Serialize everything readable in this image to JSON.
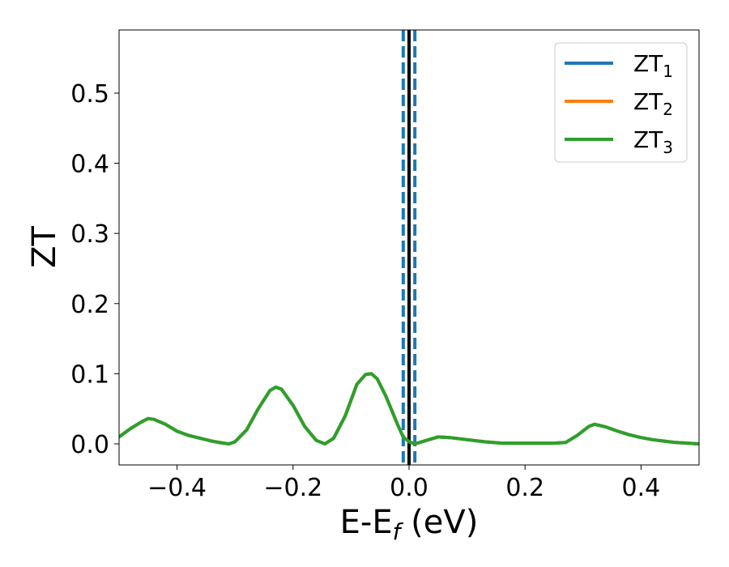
{
  "chart_data": {
    "type": "line",
    "xlabel": {
      "main": "E-E",
      "sub": "f",
      "suffix": " (eV)"
    },
    "ylabel": "ZT",
    "xlim": [
      -0.5,
      0.5
    ],
    "ylim": [
      -0.03,
      0.59
    ],
    "xticks": [
      -0.4,
      -0.2,
      0.0,
      0.2,
      0.4
    ],
    "xtick_labels": [
      "−0.4",
      "−0.2",
      "0.0",
      "0.2",
      "0.4"
    ],
    "yticks": [
      0.0,
      0.1,
      0.2,
      0.3,
      0.4,
      0.5
    ],
    "ytick_labels": [
      "0.0",
      "0.1",
      "0.2",
      "0.3",
      "0.4",
      "0.5"
    ],
    "legend_position": "top-right",
    "x": [
      -0.5,
      -0.48,
      -0.46,
      -0.45,
      -0.44,
      -0.42,
      -0.4,
      -0.38,
      -0.36,
      -0.34,
      -0.32,
      -0.31,
      -0.3,
      -0.28,
      -0.26,
      -0.24,
      -0.23,
      -0.22,
      -0.2,
      -0.18,
      -0.16,
      -0.145,
      -0.13,
      -0.11,
      -0.09,
      -0.075,
      -0.065,
      -0.055,
      -0.04,
      -0.02,
      -0.01,
      0.0,
      0.01,
      0.03,
      0.05,
      0.07,
      0.1,
      0.13,
      0.16,
      0.19,
      0.22,
      0.25,
      0.27,
      0.29,
      0.31,
      0.32,
      0.34,
      0.36,
      0.38,
      0.4,
      0.42,
      0.44,
      0.46,
      0.48,
      0.5
    ],
    "series": [
      {
        "name": "ZT",
        "sub": "1",
        "color": "#1f77b4",
        "values": [
          0.01,
          0.022,
          0.032,
          0.036,
          0.035,
          0.028,
          0.018,
          0.012,
          0.008,
          0.004,
          0.001,
          0.0,
          0.003,
          0.02,
          0.05,
          0.076,
          0.081,
          0.078,
          0.055,
          0.025,
          0.005,
          0.0,
          0.008,
          0.04,
          0.085,
          0.099,
          0.1,
          0.093,
          0.068,
          0.028,
          0.01,
          0.003,
          0.0,
          0.005,
          0.01,
          0.009,
          0.006,
          0.003,
          0.001,
          0.001,
          0.001,
          0.001,
          0.002,
          0.012,
          0.025,
          0.028,
          0.024,
          0.018,
          0.013,
          0.009,
          0.006,
          0.004,
          0.002,
          0.001,
          0.0
        ]
      },
      {
        "name": "ZT",
        "sub": "2",
        "color": "#ff7f0e",
        "values": [
          0.01,
          0.022,
          0.032,
          0.036,
          0.035,
          0.028,
          0.018,
          0.012,
          0.008,
          0.004,
          0.001,
          0.0,
          0.003,
          0.02,
          0.05,
          0.076,
          0.081,
          0.078,
          0.055,
          0.025,
          0.005,
          0.0,
          0.008,
          0.04,
          0.085,
          0.099,
          0.1,
          0.093,
          0.068,
          0.028,
          0.01,
          0.003,
          0.0,
          0.005,
          0.01,
          0.009,
          0.006,
          0.003,
          0.001,
          0.001,
          0.001,
          0.001,
          0.002,
          0.012,
          0.025,
          0.028,
          0.024,
          0.018,
          0.013,
          0.009,
          0.006,
          0.004,
          0.002,
          0.001,
          0.0
        ]
      },
      {
        "name": "ZT",
        "sub": "3",
        "color": "#2ca02c",
        "values": [
          0.01,
          0.022,
          0.032,
          0.036,
          0.035,
          0.028,
          0.018,
          0.012,
          0.008,
          0.004,
          0.001,
          0.0,
          0.003,
          0.02,
          0.05,
          0.076,
          0.081,
          0.078,
          0.055,
          0.025,
          0.005,
          0.0,
          0.008,
          0.04,
          0.085,
          0.099,
          0.1,
          0.093,
          0.068,
          0.028,
          0.01,
          0.003,
          0.0,
          0.005,
          0.01,
          0.009,
          0.006,
          0.003,
          0.001,
          0.001,
          0.001,
          0.001,
          0.002,
          0.012,
          0.025,
          0.028,
          0.024,
          0.018,
          0.013,
          0.009,
          0.006,
          0.004,
          0.002,
          0.001,
          0.0
        ]
      }
    ],
    "vertical_lines": [
      {
        "x": -0.01,
        "style": "dashed",
        "color": "#1f77b4"
      },
      {
        "x": 0.0,
        "style": "solid",
        "color": "#000000"
      },
      {
        "x": 0.01,
        "style": "dashed",
        "color": "#1f77b4"
      }
    ]
  }
}
